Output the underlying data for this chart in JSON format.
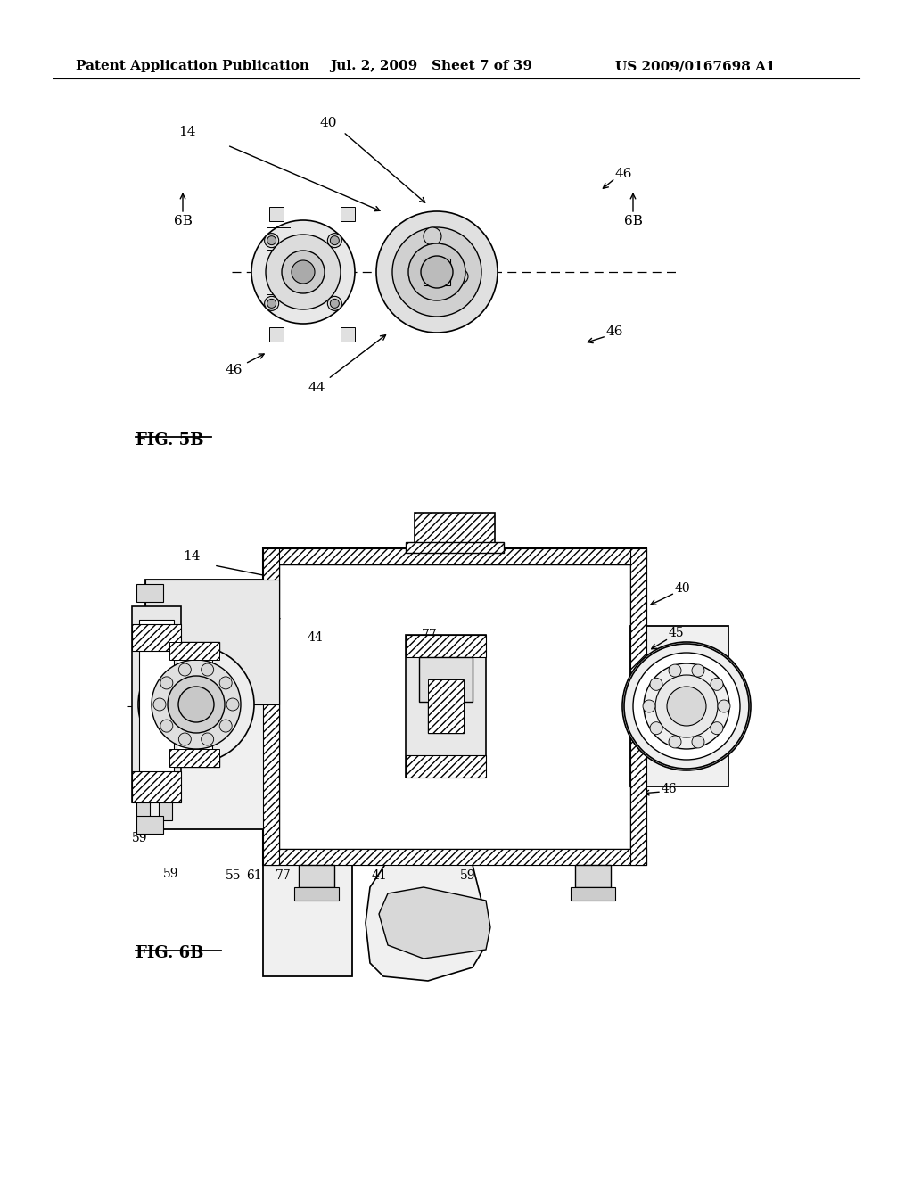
{
  "bg_color": "#ffffff",
  "header_left": "Patent Application Publication",
  "header_mid": "Jul. 2, 2009   Sheet 7 of 39",
  "header_right": "US 2009/0167698 A1",
  "fig_label_top": "FIG. 5B",
  "fig_label_bottom": "FIG. 6B",
  "header_fontsize": 11,
  "fig_label_fontsize": 13,
  "line_color": "#000000",
  "hatch_color": "#000000",
  "light_gray": "#e8e8e8",
  "mid_gray": "#cccccc",
  "dark_gray": "#888888",
  "lw_main": 1.5,
  "lw_thin": 0.8
}
